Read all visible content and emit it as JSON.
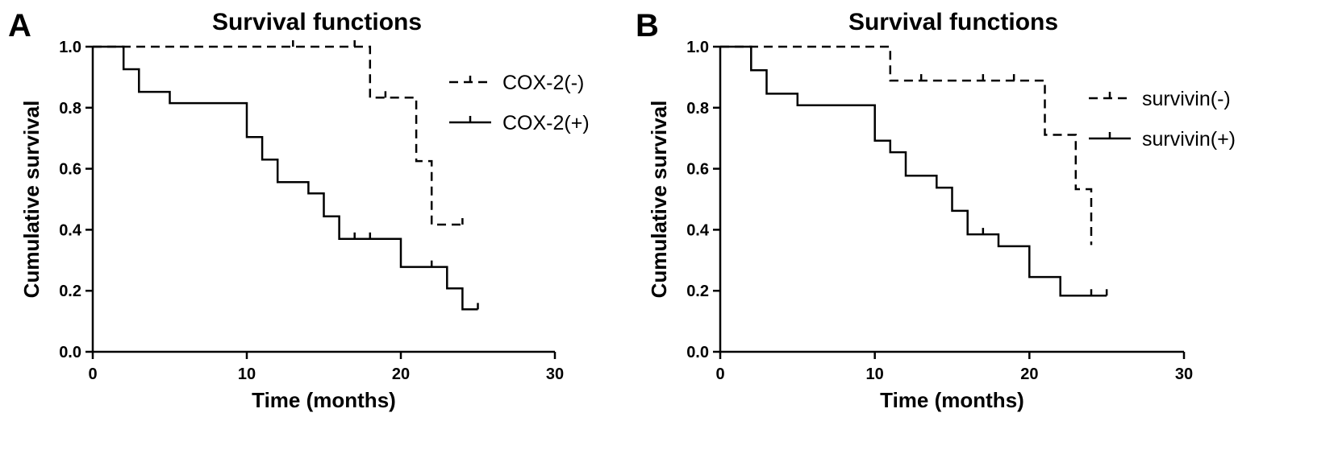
{
  "chart_data": [
    {
      "panel": "A",
      "type": "line",
      "title": "Survival functions",
      "xlabel": "Time (months)",
      "ylabel": "Cumulative survival",
      "xlim": [
        0,
        30
      ],
      "ylim": [
        0,
        1.0
      ],
      "xticks": [
        "0",
        "10",
        "20",
        "30"
      ],
      "yticks": [
        "0.0",
        "0.2",
        "0.4",
        "0.6",
        "0.8",
        "1.0"
      ],
      "grid": false,
      "legend_position": "right",
      "series": [
        {
          "name": "COX-2(-)",
          "style": "dashed",
          "points": [
            [
              0,
              1.0
            ],
            [
              18,
              1.0
            ],
            [
              18,
              0.833
            ],
            [
              21,
              0.833
            ],
            [
              21,
              0.625
            ],
            [
              22,
              0.625
            ],
            [
              22,
              0.417
            ],
            [
              24,
              0.417
            ]
          ],
          "censored": [
            [
              13,
              1.0
            ],
            [
              17,
              1.0
            ],
            [
              19,
              0.833
            ],
            [
              24,
              0.417
            ]
          ]
        },
        {
          "name": "COX-2(+)",
          "style": "solid",
          "points": [
            [
              0,
              1.0
            ],
            [
              2,
              1.0
            ],
            [
              2,
              0.926
            ],
            [
              3,
              0.926
            ],
            [
              3,
              0.852
            ],
            [
              5,
              0.852
            ],
            [
              5,
              0.815
            ],
            [
              10,
              0.815
            ],
            [
              10,
              0.704
            ],
            [
              11,
              0.704
            ],
            [
              11,
              0.63
            ],
            [
              12,
              0.63
            ],
            [
              12,
              0.556
            ],
            [
              14,
              0.556
            ],
            [
              14,
              0.519
            ],
            [
              15,
              0.519
            ],
            [
              15,
              0.444
            ],
            [
              16,
              0.444
            ],
            [
              16,
              0.37
            ],
            [
              20,
              0.37
            ],
            [
              20,
              0.278
            ],
            [
              23,
              0.278
            ],
            [
              23,
              0.208
            ],
            [
              24,
              0.208
            ],
            [
              24,
              0.139
            ],
            [
              25,
              0.139
            ]
          ],
          "censored": [
            [
              17,
              0.37
            ],
            [
              18,
              0.37
            ],
            [
              22,
              0.278
            ],
            [
              25,
              0.139
            ]
          ]
        }
      ]
    },
    {
      "panel": "B",
      "type": "line",
      "title": "Survival functions",
      "xlabel": "Time (months)",
      "ylabel": "Cumulative survival",
      "xlim": [
        0,
        30
      ],
      "ylim": [
        0,
        1.0
      ],
      "xticks": [
        "0",
        "10",
        "20",
        "30"
      ],
      "yticks": [
        "0.0",
        "0.2",
        "0.4",
        "0.6",
        "0.8",
        "1.0"
      ],
      "grid": false,
      "legend_position": "right",
      "series": [
        {
          "name": "survivin(-)",
          "style": "dashed",
          "points": [
            [
              0,
              1.0
            ],
            [
              11,
              1.0
            ],
            [
              11,
              0.889
            ],
            [
              21,
              0.889
            ],
            [
              21,
              0.711
            ],
            [
              23,
              0.711
            ],
            [
              23,
              0.533
            ],
            [
              24,
              0.533
            ],
            [
              24,
              0.35
            ]
          ],
          "censored": [
            [
              13,
              0.889
            ],
            [
              17,
              0.889
            ],
            [
              19,
              0.889
            ]
          ]
        },
        {
          "name": "survivin(+)",
          "style": "solid",
          "points": [
            [
              0,
              1.0
            ],
            [
              2,
              1.0
            ],
            [
              2,
              0.923
            ],
            [
              3,
              0.923
            ],
            [
              3,
              0.846
            ],
            [
              5,
              0.846
            ],
            [
              5,
              0.808
            ],
            [
              10,
              0.808
            ],
            [
              10,
              0.692
            ],
            [
              11,
              0.692
            ],
            [
              11,
              0.654
            ],
            [
              12,
              0.654
            ],
            [
              12,
              0.577
            ],
            [
              14,
              0.577
            ],
            [
              14,
              0.538
            ],
            [
              15,
              0.538
            ],
            [
              15,
              0.462
            ],
            [
              16,
              0.462
            ],
            [
              16,
              0.385
            ],
            [
              18,
              0.385
            ],
            [
              18,
              0.346
            ],
            [
              20,
              0.346
            ],
            [
              20,
              0.245
            ],
            [
              22,
              0.245
            ],
            [
              22,
              0.184
            ],
            [
              25,
              0.184
            ]
          ],
          "censored": [
            [
              17,
              0.385
            ],
            [
              24,
              0.184
            ],
            [
              25,
              0.184
            ]
          ]
        }
      ]
    }
  ]
}
